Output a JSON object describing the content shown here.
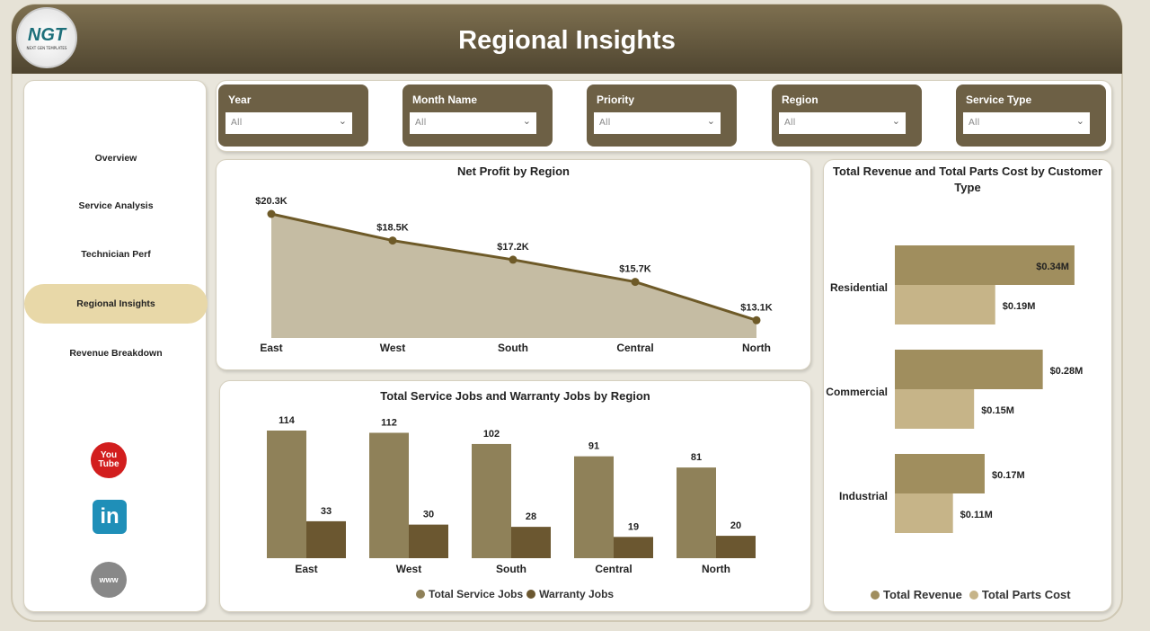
{
  "header": {
    "title": "Regional Insights",
    "logo_text": "NGT",
    "logo_sub": "NEXT GEN TEMPLATES"
  },
  "sidebar": {
    "items": [
      {
        "label": "Overview"
      },
      {
        "label": "Service Analysis"
      },
      {
        "label": "Technician Perf"
      },
      {
        "label": "Regional Insights",
        "active": true
      },
      {
        "label": "Revenue Breakdown"
      }
    ],
    "social": [
      {
        "icon": "youtube-icon",
        "label": "You Tube"
      },
      {
        "icon": "linkedin-icon",
        "label": "in"
      },
      {
        "icon": "globe-icon",
        "label": "www"
      }
    ]
  },
  "filters": [
    {
      "label": "Year",
      "value": "All"
    },
    {
      "label": "Month Name",
      "value": "All"
    },
    {
      "label": "Priority",
      "value": "All"
    },
    {
      "label": "Region",
      "value": "All"
    },
    {
      "label": "Service Type",
      "value": "All"
    }
  ],
  "colors": {
    "header": "#6d6045",
    "line": "#6e5a28",
    "area": "#c5bca3",
    "service": "#8f8159",
    "warranty": "#6b5730",
    "revenue": "#a08e5e",
    "parts": "#c6b488",
    "active_nav": "#e8d8a8"
  },
  "chart_data": [
    {
      "type": "area",
      "title": "Net Profit by Region",
      "categories": [
        "East",
        "West",
        "South",
        "Central",
        "North"
      ],
      "values": [
        20300,
        18500,
        17200,
        15700,
        13100
      ],
      "labels": [
        "$20.3K",
        "$18.5K",
        "$17.2K",
        "$15.7K",
        "$13.1K"
      ]
    },
    {
      "type": "bar",
      "title": "Total Service Jobs and Warranty Jobs by Region",
      "categories": [
        "East",
        "West",
        "South",
        "Central",
        "North"
      ],
      "series": [
        {
          "name": "Total Service Jobs",
          "values": [
            114,
            112,
            102,
            91,
            81
          ]
        },
        {
          "name": "Warranty Jobs",
          "values": [
            33,
            30,
            28,
            19,
            20
          ]
        }
      ],
      "legend": "bottom"
    },
    {
      "type": "hbar",
      "title": "Total Revenue and Total Parts Cost by Customer Type",
      "categories": [
        "Residential",
        "Commercial",
        "Industrial"
      ],
      "series": [
        {
          "name": "Total Revenue",
          "values": [
            0.34,
            0.28,
            0.17
          ],
          "labels": [
            "$0.34M",
            "$0.28M",
            "$0.17M"
          ]
        },
        {
          "name": "Total Parts Cost",
          "values": [
            0.19,
            0.15,
            0.11
          ],
          "labels": [
            "$0.19M",
            "$0.15M",
            "$0.11M"
          ]
        }
      ],
      "unit": "$M",
      "legend": "bottom"
    }
  ]
}
